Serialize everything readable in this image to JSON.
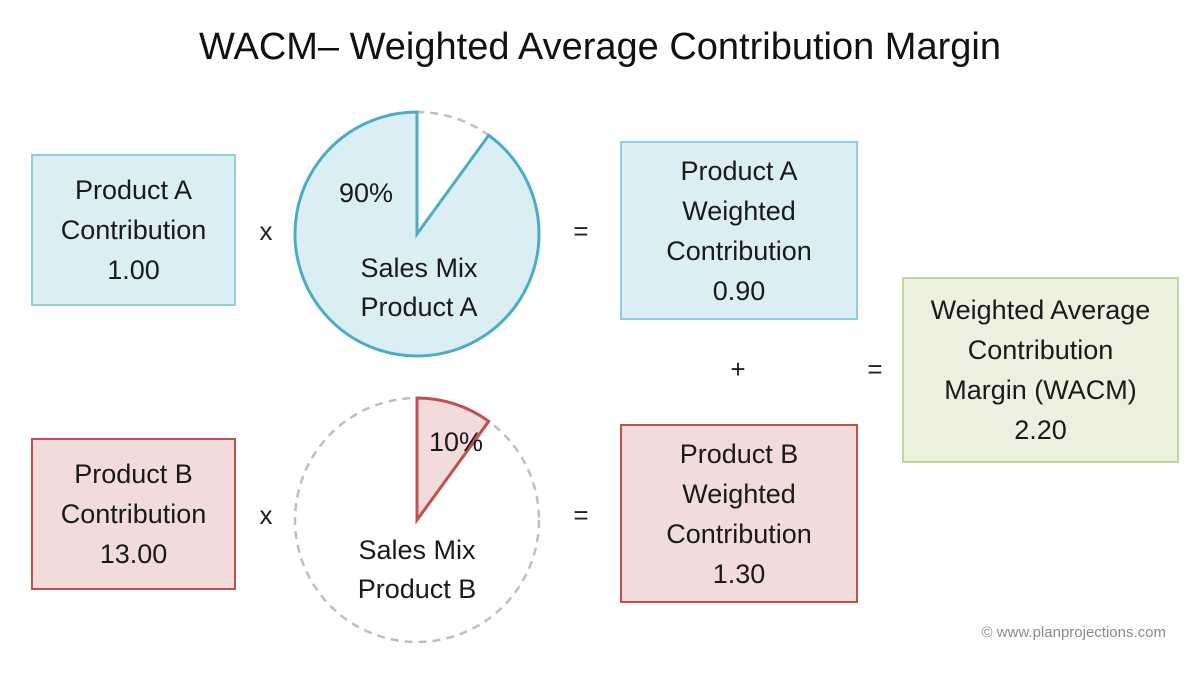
{
  "title": "WACM– Weighted Average Contribution Margin",
  "operators": {
    "multiply": "x",
    "equals": "=",
    "plus": "+"
  },
  "product_a": {
    "contribution": [
      "Product  A",
      "Contribution",
      "1.00"
    ],
    "sales_mix": {
      "percent": "90%",
      "fraction": 0.9,
      "label": [
        "Sales Mix",
        "Product  A"
      ]
    },
    "weighted": [
      "Product  A",
      "Weighted",
      "Contribution",
      "0.90"
    ]
  },
  "product_b": {
    "contribution": [
      "Product  B",
      "Contribution",
      "13.00"
    ],
    "sales_mix": {
      "percent": "10%",
      "fraction": 0.1,
      "label": [
        "Sales Mix",
        "Product  B"
      ]
    },
    "weighted": [
      "Product  B",
      "Weighted",
      "Contribution",
      "1.30"
    ]
  },
  "wacm": [
    "Weighted Average",
    "Contribution",
    "Margin (WACM)",
    "2.20"
  ],
  "copyright": "© www.planprojections.com",
  "colors": {
    "blue_fill": "#dbeef4",
    "blue_stroke": "#4bacc6",
    "red_fill": "#f2dcdb",
    "red_stroke": "#c0504d",
    "dashed": "#bfbfbf"
  }
}
